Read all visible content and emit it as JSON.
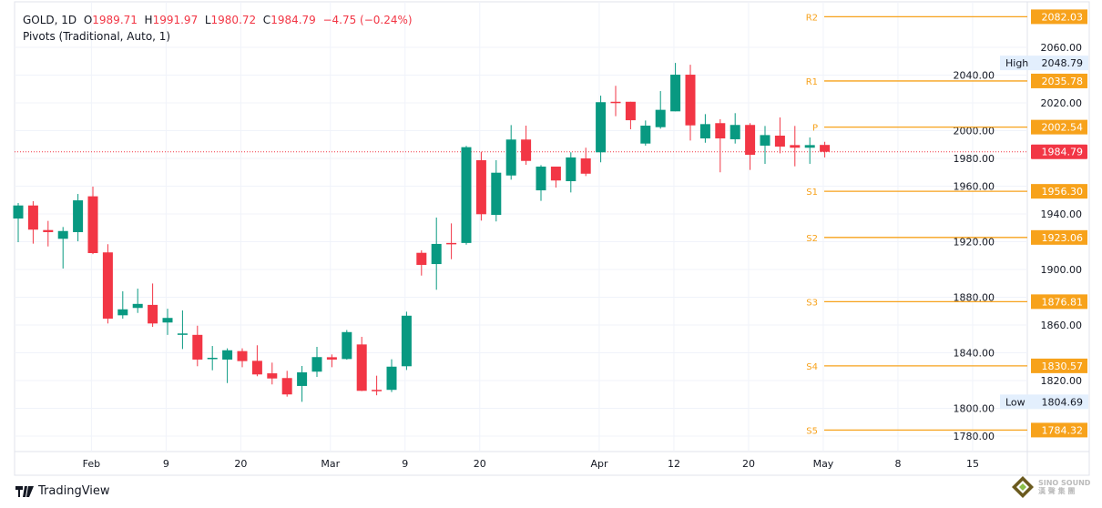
{
  "header": {
    "symbol": "GOLD, 1D",
    "open_label": "O",
    "open": "1989.71",
    "high_label": "H",
    "high": "1991.97",
    "low_label": "L",
    "low": "1980.72",
    "close_label": "C",
    "close": "1984.79",
    "change": "−4.75 (−0.24%)",
    "indicator": "Pivots (Traditional, Auto, 1)"
  },
  "branding": {
    "name": "TradingView",
    "watermark": "SINO SOUND 漢聲集團"
  },
  "colors": {
    "up": "#089981",
    "down": "#f23645",
    "pivot": "#f7a21b",
    "high_low_badge": "#e3effd"
  },
  "chart_data": {
    "type": "candlestick",
    "ylim": [
      1770,
      2090
    ],
    "y_ticks": [
      "2060.00",
      "2040.00",
      "2020.00",
      "2000.00",
      "1980.00",
      "1960.00",
      "1940.00",
      "1920.00",
      "1900.00",
      "1880.00",
      "1860.00",
      "1840.00",
      "1820.00",
      "1800.00",
      "1780.00"
    ],
    "x_ticks": [
      {
        "label": "Feb",
        "bar": 4.9
      },
      {
        "label": "9",
        "bar": 9.9
      },
      {
        "label": "20",
        "bar": 14.9
      },
      {
        "label": "Mar",
        "bar": 20.9
      },
      {
        "label": "9",
        "bar": 25.9
      },
      {
        "label": "20",
        "bar": 30.9
      },
      {
        "label": "Apr",
        "bar": 38.9
      },
      {
        "label": "12",
        "bar": 43.9
      },
      {
        "label": "20",
        "bar": 48.9
      },
      {
        "label": "May",
        "bar": 53.9
      },
      {
        "label": "8",
        "bar": 58.9
      },
      {
        "label": "15",
        "bar": 63.9
      }
    ],
    "ohlc": [
      [
        1936.7,
        1947.9,
        1919.7,
        1946.1
      ],
      [
        1946.1,
        1949.2,
        1918.6,
        1928.7
      ],
      [
        1928.4,
        1935.0,
        1916.6,
        1926.9
      ],
      [
        1922.1,
        1930.6,
        1900.7,
        1927.7
      ],
      [
        1926.9,
        1954.4,
        1920.3,
        1949.8
      ],
      [
        1952.7,
        1959.7,
        1911.1,
        1911.8
      ],
      [
        1912.3,
        1918.2,
        1861.1,
        1864.6
      ],
      [
        1867.0,
        1884.3,
        1864.6,
        1871.3
      ],
      [
        1872.3,
        1886.2,
        1868.7,
        1875.2
      ],
      [
        1874.5,
        1889.9,
        1858.7,
        1861.1
      ],
      [
        1861.8,
        1871.7,
        1852.9,
        1865.1
      ],
      [
        1852.9,
        1870.5,
        1842.7,
        1853.9
      ],
      [
        1852.9,
        1859.5,
        1830.3,
        1835.1
      ],
      [
        1835.5,
        1844.9,
        1827.4,
        1836.4
      ],
      [
        1835.1,
        1843.2,
        1818.2,
        1841.8
      ],
      [
        1841.2,
        1843.2,
        1829.6,
        1834.0
      ],
      [
        1834.2,
        1845.4,
        1823.1,
        1824.4
      ],
      [
        1825.2,
        1832.9,
        1817.2,
        1821.5
      ],
      [
        1821.8,
        1827.0,
        1808.4,
        1810.0
      ],
      [
        1816.1,
        1830.5,
        1804.69,
        1825.9
      ],
      [
        1826.4,
        1844.3,
        1822.6,
        1836.9
      ],
      [
        1836.8,
        1838.8,
        1829.6,
        1835.1
      ],
      [
        1835.5,
        1856.4,
        1835.0,
        1854.9
      ],
      [
        1846.0,
        1851.5,
        1812.4,
        1812.6
      ],
      [
        1813.3,
        1823.5,
        1809.4,
        1812.4
      ],
      [
        1813.3,
        1835.3,
        1811.7,
        1830.0
      ],
      [
        1830.3,
        1869.6,
        1827.6,
        1866.7
      ],
      [
        1912.0,
        1913.8,
        1895.6,
        1903.3
      ],
      [
        1903.9,
        1937.4,
        1885.4,
        1918.4
      ],
      [
        1919.1,
        1933.2,
        1907.4,
        1918.6
      ],
      [
        1919.1,
        1989.0,
        1917.9,
        1988.1
      ],
      [
        1978.7,
        1984.8,
        1935.2,
        1939.8
      ],
      [
        1939.3,
        1978.7,
        1934.6,
        1969.7
      ],
      [
        1967.7,
        2004.0,
        1964.7,
        1993.6
      ],
      [
        1993.6,
        2003.6,
        1975.4,
        1978.2
      ],
      [
        1957.0,
        1975.2,
        1949.4,
        1974.1
      ],
      [
        1974.1,
        1974.1,
        1959.0,
        1964.1
      ],
      [
        1963.6,
        1984.4,
        1955.5,
        1980.7
      ],
      [
        1980.0,
        1987.7,
        1967.3,
        1969.0
      ],
      [
        1984.4,
        2025.2,
        1977.2,
        2020.5
      ],
      [
        2020.8,
        2032.3,
        2010.4,
        2020.2
      ],
      [
        2020.8,
        2020.8,
        2001.0,
        2007.5
      ],
      [
        1990.7,
        2007.3,
        1989.2,
        2003.6
      ],
      [
        2002.5,
        2028.5,
        2001.4,
        2015.0
      ],
      [
        2013.9,
        2048.79,
        2013.9,
        2040.3
      ],
      [
        2040.3,
        2047.5,
        1992.9,
        2003.8
      ],
      [
        1994.4,
        2011.9,
        1991.3,
        2004.7
      ],
      [
        2005.4,
        2008.2,
        1970.0,
        1994.4
      ],
      [
        1993.8,
        2012.6,
        1990.7,
        2004.1
      ],
      [
        2004.1,
        2005.4,
        1971.7,
        1982.6
      ],
      [
        1989.2,
        2003.4,
        1976.1,
        1996.8
      ],
      [
        1996.4,
        2009.5,
        1983.7,
        1988.5
      ],
      [
        1989.6,
        2003.4,
        1974.3,
        1987.7
      ],
      [
        1987.7,
        1995.1,
        1976.1,
        1989.6
      ],
      [
        1989.71,
        1991.97,
        1980.72,
        1984.79
      ]
    ],
    "last_price": "1984.79",
    "high": {
      "label": "High",
      "value": "2048.79"
    },
    "low": {
      "label": "Low",
      "value": "1804.69"
    },
    "pivots": [
      {
        "name": "R2",
        "value": "2082.03"
      },
      {
        "name": "R1",
        "value": "2035.78"
      },
      {
        "name": "P",
        "value": "2002.54"
      },
      {
        "name": "S1",
        "value": "1956.30"
      },
      {
        "name": "S2",
        "value": "1923.06"
      },
      {
        "name": "S3",
        "value": "1876.81"
      },
      {
        "name": "S4",
        "value": "1830.57"
      },
      {
        "name": "S5",
        "value": "1784.32"
      }
    ]
  }
}
